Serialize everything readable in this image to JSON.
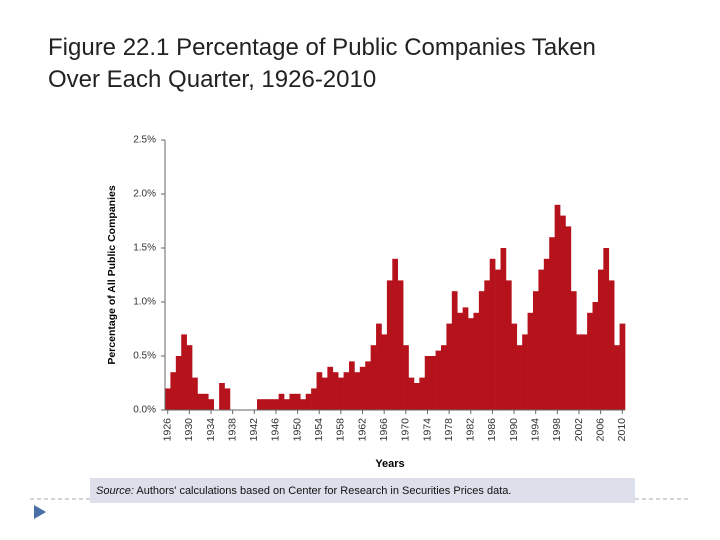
{
  "chart_data": {
    "type": "bar",
    "title": "Figure 22.1  Percentage of Public Companies Taken Over Each Quarter, 1926-2010",
    "ylabel": "Percentage of All Public Companies",
    "xlabel": "Years",
    "source_label": "Source:",
    "source_text": "Authors' calculations based on Center for Research in Securities Prices data.",
    "color": "#b5121b",
    "x": [
      1926,
      1927,
      1928,
      1929,
      1930,
      1931,
      1932,
      1933,
      1934,
      1935,
      1936,
      1937,
      1938,
      1939,
      1940,
      1941,
      1942,
      1943,
      1944,
      1945,
      1946,
      1947,
      1948,
      1949,
      1950,
      1951,
      1952,
      1953,
      1954,
      1955,
      1956,
      1957,
      1958,
      1959,
      1960,
      1961,
      1962,
      1963,
      1964,
      1965,
      1966,
      1967,
      1968,
      1969,
      1970,
      1971,
      1972,
      1973,
      1974,
      1975,
      1976,
      1977,
      1978,
      1979,
      1980,
      1981,
      1982,
      1983,
      1984,
      1985,
      1986,
      1987,
      1988,
      1989,
      1990,
      1991,
      1992,
      1993,
      1994,
      1995,
      1996,
      1997,
      1998,
      1999,
      2000,
      2001,
      2002,
      2003,
      2004,
      2005,
      2006,
      2007,
      2008,
      2009,
      2010
    ],
    "values": [
      0.2,
      0.35,
      0.5,
      0.7,
      0.6,
      0.3,
      0.15,
      0.15,
      0.1,
      0,
      0.25,
      0.2,
      0,
      0,
      0,
      0,
      0,
      0.1,
      0.1,
      0.1,
      0.1,
      0.15,
      0.1,
      0.15,
      0.15,
      0.1,
      0.15,
      0.2,
      0.35,
      0.3,
      0.4,
      0.35,
      0.3,
      0.35,
      0.45,
      0.35,
      0.4,
      0.45,
      0.6,
      0.8,
      0.7,
      1.2,
      1.4,
      1.2,
      0.6,
      0.3,
      0.25,
      0.3,
      0.5,
      0.5,
      0.55,
      0.6,
      0.8,
      1.1,
      0.9,
      0.95,
      0.85,
      0.9,
      1.1,
      1.2,
      1.4,
      1.3,
      1.5,
      1.2,
      0.8,
      0.6,
      0.7,
      0.9,
      1.1,
      1.3,
      1.4,
      1.6,
      1.9,
      1.8,
      1.7,
      1.1,
      0.7,
      0.7,
      0.9,
      1.0,
      1.3,
      1.5,
      1.2,
      0.6,
      0.8
    ],
    "xlim": [
      1925.5,
      2010.5
    ],
    "xticks": [
      1926,
      1930,
      1934,
      1938,
      1942,
      1946,
      1950,
      1954,
      1958,
      1962,
      1966,
      1970,
      1974,
      1978,
      1982,
      1986,
      1990,
      1994,
      1998,
      2002,
      2006,
      2010
    ],
    "ylim": [
      0,
      2.5
    ],
    "yticks": [
      {
        "value": 0,
        "label": "0.0%"
      },
      {
        "value": 0.5,
        "label": "0.5%"
      },
      {
        "value": 1,
        "label": "1.0%"
      },
      {
        "value": 1.5,
        "label": "1.5%"
      },
      {
        "value": 2,
        "label": "2.0%"
      },
      {
        "value": 2.5,
        "label": "2.5%"
      }
    ]
  }
}
